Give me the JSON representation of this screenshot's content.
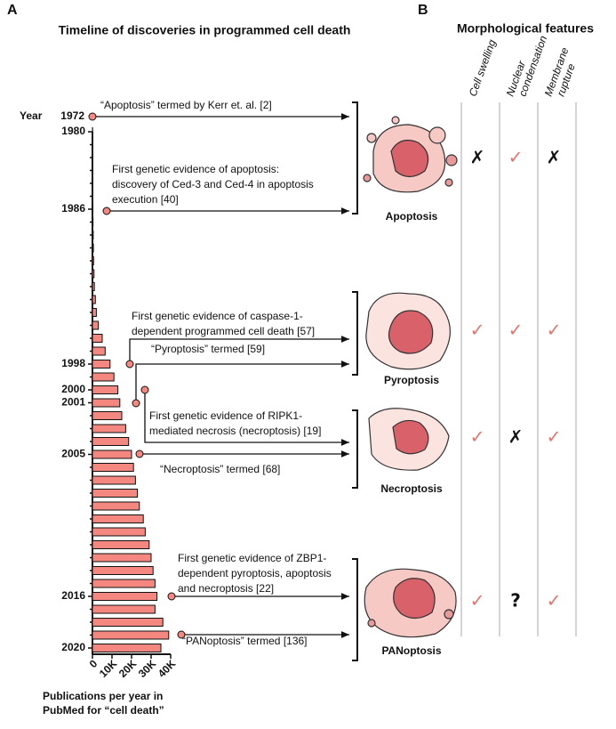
{
  "panel_a": {
    "letter": "A",
    "title": "Timeline of discoveries in programmed cell death",
    "year_label": "Year"
  },
  "chart_data": {
    "type": "bar",
    "orientation": "horizontal",
    "categories": [
      "1980",
      null,
      null,
      null,
      null,
      null,
      "1986",
      null,
      null,
      null,
      null,
      null,
      null,
      null,
      null,
      null,
      null,
      null,
      "1998",
      null,
      "2000",
      "2001",
      null,
      null,
      null,
      "2005",
      null,
      null,
      null,
      null,
      null,
      null,
      null,
      null,
      null,
      null,
      "2016",
      null,
      null,
      null,
      "2020"
    ],
    "values": [
      100,
      100,
      100,
      150,
      150,
      200,
      250,
      300,
      400,
      500,
      600,
      800,
      1000,
      1500,
      2000,
      3000,
      5000,
      6500,
      9000,
      11000,
      13000,
      14000,
      15000,
      17000,
      18500,
      20000,
      21000,
      22000,
      23000,
      24000,
      26000,
      27000,
      29000,
      30000,
      31000,
      32000,
      33000,
      32000,
      36000,
      39000,
      35000
    ],
    "color": "#f4877f",
    "xlim": [
      0,
      40000
    ],
    "xticks": [
      0,
      {
        "value": 10000,
        "label": "10K"
      },
      {
        "value": 20000,
        "label": "20K"
      },
      {
        "value": 30000,
        "label": "30K"
      },
      {
        "value": 40000,
        "label": "40K"
      }
    ],
    "xlabel": [
      "Publications per year in",
      "PubMed for “cell death”"
    ]
  },
  "events": [
    {
      "year": "1972",
      "lines": [
        "“Apoptosis” termed by Kerr et. al. [2]"
      ]
    },
    {
      "lines": [
        "First genetic evidence of apoptosis:",
        "discovery of Ced-3 and Ced-4 in apoptosis",
        "execution [40]"
      ]
    },
    {
      "lines": [
        "First genetic evidence of caspase-1-",
        "dependent programmed cell death [57]"
      ]
    },
    {
      "lines": [
        "“Pyroptosis” termed [59]"
      ]
    },
    {
      "lines": [
        "First genetic evidence of RIPK1-",
        "mediated necrosis (necroptosis) [19]"
      ]
    },
    {
      "lines": [
        "“Necroptosis” termed [68]"
      ]
    },
    {
      "lines": [
        "First genetic evidence of ZBP1-",
        "dependent pyroptosis, apoptosis",
        "and necroptosis [22]"
      ]
    },
    {
      "lines": [
        "“PANoptosis” termed [136]"
      ]
    }
  ],
  "panel_b": {
    "letter": "B",
    "title": "Morphological features",
    "columns": [
      [
        "Cell swelling"
      ],
      [
        "Nuclear",
        "condensation"
      ],
      [
        "Membrane",
        "rupture"
      ]
    ],
    "rows": [
      {
        "name": "Apoptosis",
        "marks": [
          "✗",
          "✓",
          "✗"
        ]
      },
      {
        "name": "Pyroptosis",
        "marks": [
          "✓",
          "✓",
          "✓"
        ]
      },
      {
        "name": "Necroptosis",
        "marks": [
          "✓",
          "✗",
          "✓"
        ]
      },
      {
        "name": "PANoptosis",
        "marks": [
          "✓",
          "?",
          "✓"
        ]
      }
    ]
  }
}
